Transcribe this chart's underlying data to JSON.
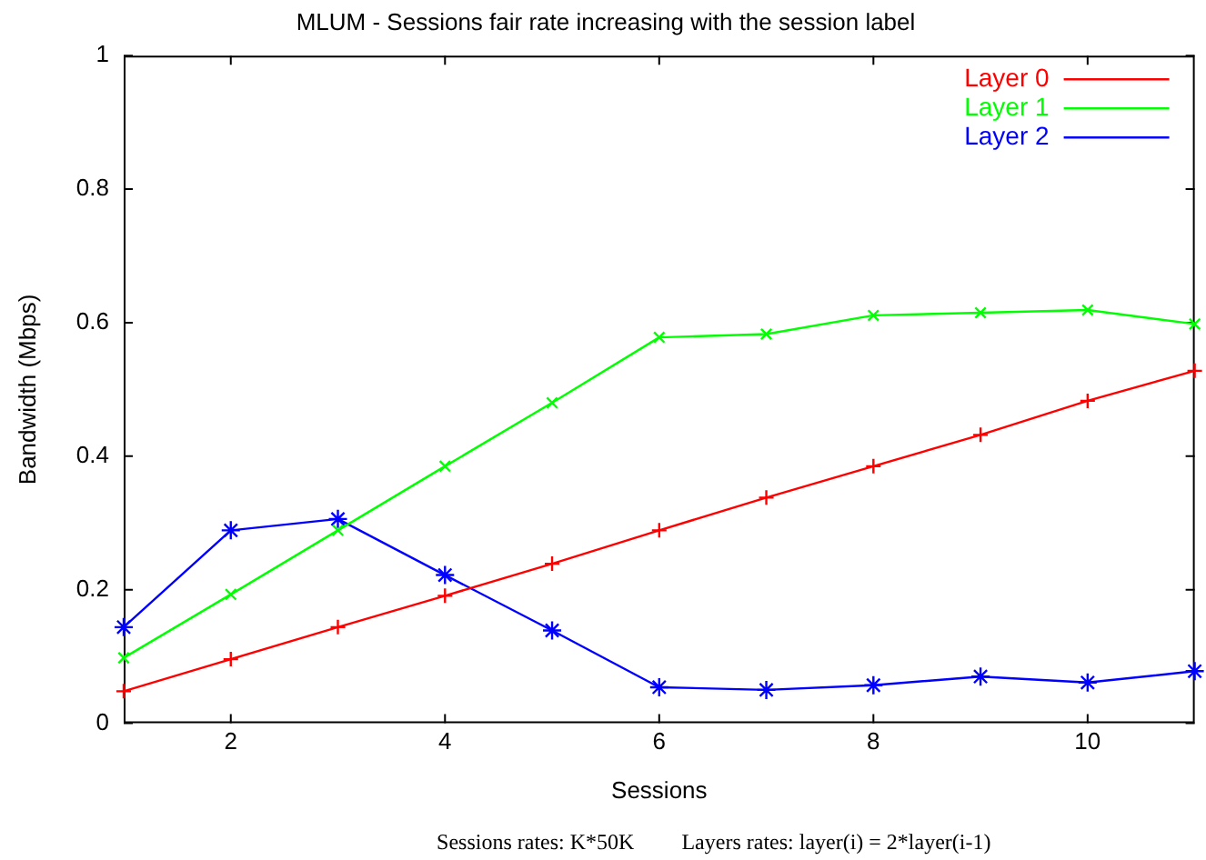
{
  "chart_data": {
    "type": "line",
    "title": "MLUM - Sessions fair rate increasing with the session label",
    "xlabel": "Sessions",
    "ylabel": "Bandwidth (Mbps)",
    "x": [
      1,
      2,
      3,
      4,
      5,
      6,
      7,
      8,
      9,
      10,
      11
    ],
    "series": [
      {
        "name": "Layer 0",
        "color": "#ff0000",
        "marker": "cross",
        "values": [
          0.048,
          0.096,
          0.144,
          0.191,
          0.239,
          0.289,
          0.338,
          0.385,
          0.432,
          0.483,
          0.528
        ]
      },
      {
        "name": "Layer 1",
        "color": "#00ff00",
        "marker": "cross",
        "values": [
          0.098,
          0.193,
          0.289,
          0.385,
          0.48,
          0.578,
          0.583,
          0.611,
          0.615,
          0.619,
          0.598
        ]
      },
      {
        "name": "Layer 2",
        "color": "#0000ff",
        "marker": "cross",
        "values": [
          0.144,
          0.289,
          0.306,
          0.222,
          0.139,
          0.054,
          0.05,
          0.057,
          0.07,
          0.061,
          0.078
        ]
      }
    ],
    "xlim": [
      1,
      11
    ],
    "xticks": [
      2,
      4,
      6,
      8,
      10
    ],
    "ylim": [
      0,
      1
    ],
    "yticks": [
      0,
      0.2,
      0.4,
      0.6,
      0.8,
      1
    ],
    "grid": false,
    "legend": "top right",
    "line_style": "solid",
    "annotations": [
      "Sessions rates: K*50K",
      "Layers rates: layer(i) = 2*layer(i-1)"
    ]
  }
}
